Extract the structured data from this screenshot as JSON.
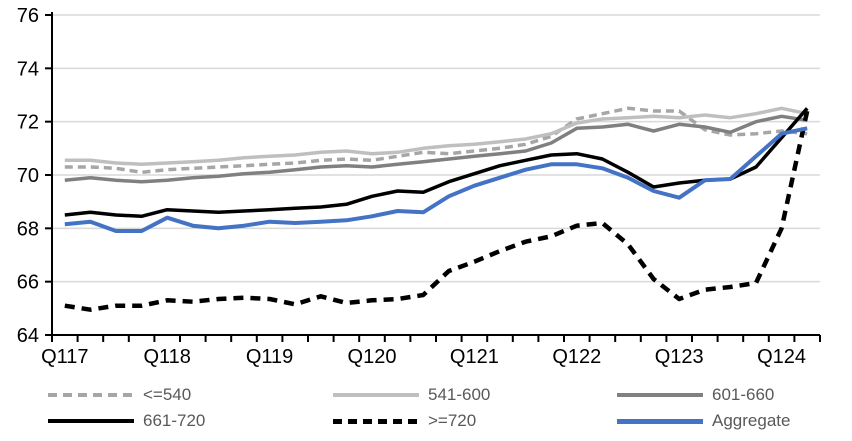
{
  "chart_data": {
    "type": "line",
    "title": "",
    "grid": true,
    "legend_position": "bottom",
    "ylim": [
      64,
      76
    ],
    "y_ticks": [
      64,
      66,
      68,
      70,
      72,
      74,
      76
    ],
    "x_year_labels": [
      "Q117",
      "Q118",
      "Q119",
      "Q120",
      "Q121",
      "Q122",
      "Q123",
      "Q124"
    ],
    "quarters_per_year": 4,
    "n_points": 30,
    "gridline_color": "#d9d9d9",
    "axis_color": "#000000",
    "axis_label_color": "#000000",
    "legend_text_color": "#595959",
    "series": [
      {
        "name": "<=540",
        "color": "#a6a6a6",
        "style": "dashed",
        "width": 3.5,
        "values": [
          70.3,
          70.3,
          70.25,
          70.1,
          70.2,
          70.25,
          70.3,
          70.35,
          70.4,
          70.45,
          70.55,
          70.6,
          70.55,
          70.7,
          70.85,
          70.8,
          70.9,
          71.0,
          71.15,
          71.45,
          72.1,
          72.3,
          72.5,
          72.4,
          72.4,
          71.7,
          71.5,
          71.55,
          71.65,
          71.55
        ]
      },
      {
        "name": "541-600",
        "color": "#bfbfbf",
        "style": "solid",
        "width": 3.5,
        "values": [
          70.55,
          70.55,
          70.45,
          70.4,
          70.45,
          70.5,
          70.55,
          70.65,
          70.7,
          70.75,
          70.85,
          70.9,
          70.8,
          70.85,
          71.0,
          71.1,
          71.15,
          71.25,
          71.35,
          71.55,
          71.95,
          72.1,
          72.15,
          72.2,
          72.15,
          72.25,
          72.15,
          72.3,
          72.5,
          72.3
        ]
      },
      {
        "name": "601-660",
        "color": "#808080",
        "style": "solid",
        "width": 3.5,
        "values": [
          69.8,
          69.9,
          69.8,
          69.75,
          69.8,
          69.9,
          69.95,
          70.05,
          70.1,
          70.2,
          70.3,
          70.35,
          70.3,
          70.4,
          70.5,
          70.6,
          70.7,
          70.8,
          70.9,
          71.2,
          71.75,
          71.8,
          71.9,
          71.65,
          71.9,
          71.8,
          71.6,
          72.0,
          72.2,
          72.05
        ]
      },
      {
        "name": "661-720",
        "color": "#000000",
        "style": "solid",
        "width": 3.5,
        "values": [
          68.5,
          68.6,
          68.5,
          68.45,
          68.7,
          68.65,
          68.6,
          68.65,
          68.7,
          68.75,
          68.8,
          68.9,
          69.2,
          69.4,
          69.35,
          69.75,
          70.05,
          70.35,
          70.55,
          70.75,
          70.8,
          70.6,
          70.1,
          69.55,
          69.7,
          69.8,
          69.85,
          70.3,
          71.4,
          72.5
        ]
      },
      {
        "name": ">=720",
        "color": "#000000",
        "style": "dashed",
        "width": 4.5,
        "values": [
          65.1,
          64.95,
          65.1,
          65.1,
          65.3,
          65.25,
          65.35,
          65.4,
          65.35,
          65.15,
          65.45,
          65.2,
          65.3,
          65.35,
          65.5,
          66.4,
          66.75,
          67.15,
          67.5,
          67.7,
          68.1,
          68.2,
          67.4,
          66.1,
          65.35,
          65.7,
          65.8,
          65.95,
          68.0,
          72.4
        ]
      },
      {
        "name": "Aggregate",
        "color": "#4472c4",
        "style": "solid",
        "width": 4,
        "values": [
          68.15,
          68.25,
          67.9,
          67.9,
          68.4,
          68.1,
          68.0,
          68.1,
          68.25,
          68.2,
          68.25,
          68.3,
          68.45,
          68.65,
          68.6,
          69.2,
          69.6,
          69.9,
          70.2,
          70.4,
          70.4,
          70.25,
          69.9,
          69.4,
          69.15,
          69.8,
          69.85,
          70.7,
          71.55,
          71.75
        ]
      }
    ]
  }
}
